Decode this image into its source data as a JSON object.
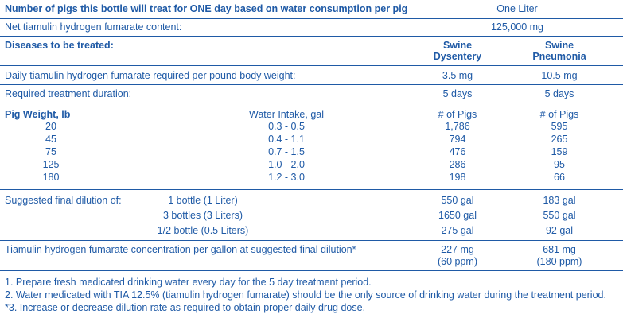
{
  "header": {
    "title": "Number of pigs this bottle will treat for ONE day based on water consumption per pig",
    "bottle_size": "One Liter"
  },
  "content": {
    "label": "Net tiamulin hydrogen fumarate content:",
    "value": "125,000 mg"
  },
  "diseases": {
    "label": "Diseases to be treated:",
    "col1_line1": "Swine",
    "col1_line2": "Dysentery",
    "col2_line1": "Swine",
    "col2_line2": "Pneumonia"
  },
  "daily": {
    "label": "Daily tiamulin hydrogen fumarate required per pound body weight:",
    "col1": "3.5 mg",
    "col2": "10.5 mg"
  },
  "duration": {
    "label": "Required treatment duration:",
    "col1": "5 days",
    "col2": "5 days"
  },
  "weights": {
    "headers": [
      "Pig Weight, lb",
      "Water Intake, gal",
      "# of Pigs",
      "# of Pigs"
    ],
    "rows": [
      [
        "20",
        "0.3 - 0.5",
        "1,786",
        "595"
      ],
      [
        "45",
        "0.4 - 1.1",
        "794",
        "265"
      ],
      [
        "75",
        "0.7 - 1.5",
        "476",
        "159"
      ],
      [
        "125",
        "1.0 - 2.0",
        "286",
        "95"
      ],
      [
        "180",
        "1.2 - 3.0",
        "198",
        "66"
      ]
    ]
  },
  "dilution": {
    "label": "Suggested final dilution of:",
    "rows": [
      [
        "1 bottle (1 Liter)",
        "550 gal",
        "183 gal"
      ],
      [
        "3 bottles (3 Liters)",
        "1650 gal",
        "550 gal"
      ],
      [
        "1/2 bottle (0.5 Liters)",
        "275 gal",
        "92 gal"
      ]
    ]
  },
  "concentration": {
    "label": "Tiamulin hydrogen fumarate concentration per gallon at suggested final dilution*",
    "col1_line1": "227 mg",
    "col1_line2": "(60 ppm)",
    "col2_line1": "681 mg",
    "col2_line2": "(180 ppm)"
  },
  "footnotes": [
    "1. Prepare fresh medicated drinking water every day for the 5 day treatment period.",
    "2. Water medicated with TIA 12.5% (tiamulin hydrogen fumarate) should be the only source of drinking water during the treatment period.",
    "*3. Increase or decrease dilution rate as required to obtain proper daily drug dose."
  ],
  "colors": {
    "text": "#1f5aa6",
    "rule": "#1f5aa6",
    "background": "#ffffff"
  }
}
